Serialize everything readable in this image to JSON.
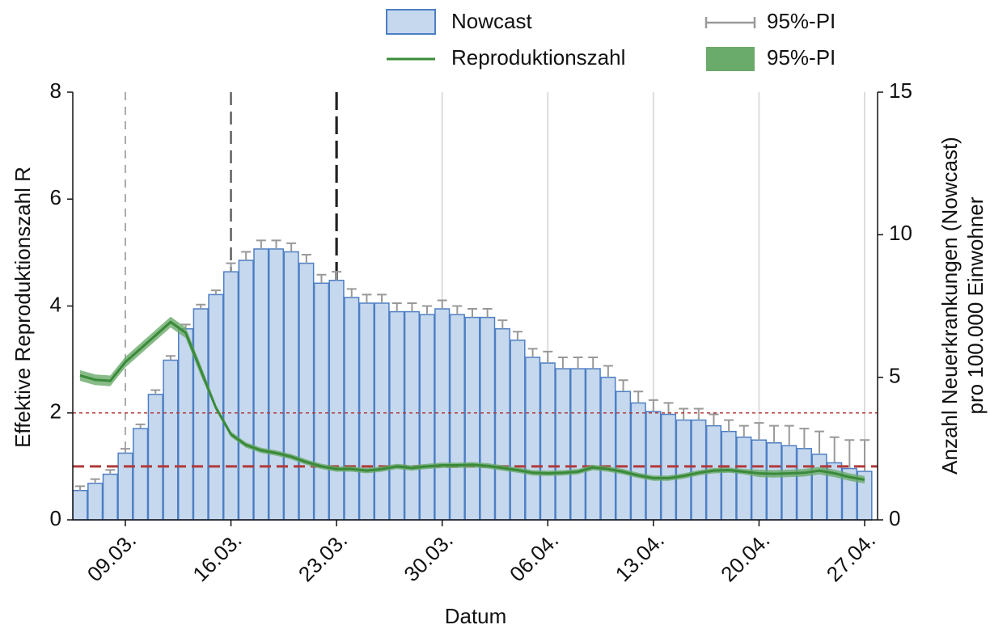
{
  "chart_data": {
    "type": "combo",
    "xlabel": "Datum",
    "ylabel": "Effektive Reproduktionszahl R",
    "y2label": [
      "Anzahl Neuerkrankungen (Nowcast)",
      "pro 100.000 Einwohner"
    ],
    "categories": [
      null,
      null,
      null,
      "09.03.",
      null,
      null,
      null,
      null,
      null,
      null,
      "16.03.",
      null,
      null,
      null,
      null,
      null,
      null,
      "23.03.",
      null,
      null,
      null,
      null,
      null,
      null,
      "30.03.",
      null,
      null,
      null,
      null,
      null,
      null,
      "06.04.",
      null,
      null,
      null,
      null,
      null,
      null,
      "13.04.",
      null,
      null,
      null,
      null,
      null,
      null,
      "20.04.",
      null,
      null,
      null,
      null,
      null,
      null,
      "27.04."
    ],
    "ylim": [
      0,
      8
    ],
    "yticks": [
      0,
      2,
      4,
      6,
      8
    ],
    "y2lim": [
      0,
      15
    ],
    "y2ticks": [
      0,
      5,
      10,
      15
    ],
    "event_lines": [
      {
        "index": 3,
        "color": "#aaaaaa"
      },
      {
        "index": 10,
        "color": "#666666"
      },
      {
        "index": 17,
        "color": "#222222"
      }
    ],
    "grid_color": "#dddddd",
    "hlines": [
      {
        "y": 2,
        "color": "#b03a3a",
        "width": 1.5
      },
      {
        "y": 1,
        "color": "#b03a3a",
        "width": 3
      }
    ],
    "series": [
      {
        "name": "Nowcast",
        "type": "bar",
        "axis": "y2",
        "color": "#c6d8ee",
        "edge": "#4d7fc4",
        "values": [
          1.03,
          1.28,
          1.6,
          2.34,
          3.2,
          4.4,
          5.6,
          6.7,
          7.4,
          7.9,
          8.7,
          9.1,
          9.5,
          9.5,
          9.4,
          9.0,
          8.3,
          8.4,
          7.8,
          7.6,
          7.6,
          7.3,
          7.3,
          7.2,
          7.4,
          7.2,
          7.1,
          7.1,
          6.7,
          6.3,
          5.7,
          5.5,
          5.3,
          5.3,
          5.3,
          5.0,
          4.5,
          4.1,
          3.8,
          3.7,
          3.5,
          3.5,
          3.3,
          3.1,
          2.9,
          2.8,
          2.7,
          2.6,
          2.5,
          2.3,
          2.0,
          1.8,
          1.7
        ],
        "errors": [
          0.15,
          0.15,
          0.15,
          0.15,
          0.15,
          0.15,
          0.15,
          0.15,
          0.15,
          0.15,
          0.3,
          0.3,
          0.3,
          0.3,
          0.3,
          0.3,
          0.3,
          0.3,
          0.3,
          0.3,
          0.3,
          0.3,
          0.3,
          0.3,
          0.3,
          0.3,
          0.3,
          0.3,
          0.3,
          0.3,
          0.3,
          0.4,
          0.4,
          0.4,
          0.4,
          0.4,
          0.4,
          0.4,
          0.4,
          0.4,
          0.4,
          0.4,
          0.4,
          0.4,
          0.4,
          0.6,
          0.6,
          0.7,
          0.7,
          0.8,
          0.9,
          1.0,
          1.1
        ],
        "error_name": "95%-PI",
        "error_color": "#999999"
      },
      {
        "name": "Reproduktionszahl",
        "type": "line",
        "color": "#3a8a3a",
        "values": [
          2.7,
          2.62,
          2.6,
          2.95,
          3.2,
          3.45,
          3.7,
          3.5,
          2.8,
          2.1,
          1.6,
          1.4,
          1.3,
          1.25,
          1.18,
          1.08,
          1.0,
          0.95,
          0.95,
          0.92,
          0.95,
          1.0,
          0.97,
          1.0,
          1.02,
          1.02,
          1.03,
          1.01,
          0.97,
          0.93,
          0.88,
          0.87,
          0.88,
          0.9,
          0.98,
          0.95,
          0.9,
          0.83,
          0.78,
          0.78,
          0.82,
          0.88,
          0.92,
          0.93,
          0.9,
          0.87,
          0.86,
          0.87,
          0.88,
          0.92,
          0.87,
          0.8,
          0.75
        ],
        "band_name": "95%-PI",
        "band_color": "#6aaa6a",
        "lower": [
          2.6,
          2.52,
          2.5,
          2.85,
          3.1,
          3.35,
          3.6,
          3.4,
          2.7,
          2.05,
          1.55,
          1.35,
          1.25,
          1.2,
          1.13,
          1.03,
          0.95,
          0.9,
          0.9,
          0.87,
          0.9,
          0.95,
          0.92,
          0.95,
          0.97,
          0.97,
          0.98,
          0.96,
          0.92,
          0.88,
          0.83,
          0.82,
          0.83,
          0.85,
          0.93,
          0.9,
          0.85,
          0.78,
          0.73,
          0.73,
          0.77,
          0.83,
          0.87,
          0.88,
          0.85,
          0.8,
          0.79,
          0.8,
          0.81,
          0.85,
          0.8,
          0.73,
          0.68
        ],
        "upper": [
          2.8,
          2.72,
          2.7,
          3.05,
          3.3,
          3.55,
          3.8,
          3.6,
          2.9,
          2.15,
          1.65,
          1.45,
          1.35,
          1.3,
          1.23,
          1.13,
          1.05,
          1.0,
          1.0,
          0.97,
          1.0,
          1.05,
          1.02,
          1.05,
          1.07,
          1.07,
          1.08,
          1.06,
          1.02,
          0.98,
          0.93,
          0.92,
          0.93,
          0.95,
          1.03,
          1.0,
          0.95,
          0.88,
          0.83,
          0.83,
          0.87,
          0.93,
          0.97,
          0.98,
          0.95,
          0.94,
          0.93,
          0.94,
          0.95,
          0.99,
          0.94,
          0.87,
          0.82
        ]
      }
    ]
  }
}
